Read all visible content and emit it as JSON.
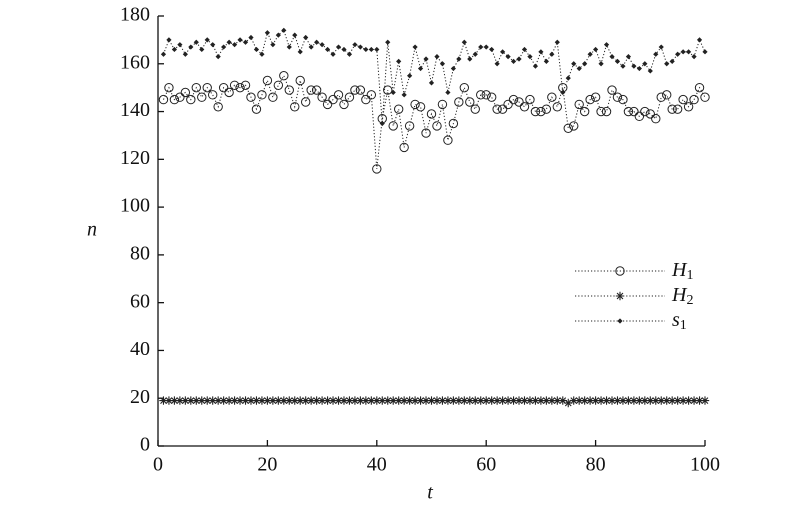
{
  "chart_data": {
    "type": "line",
    "x_label": "t",
    "y_label": "n",
    "x": [
      1,
      2,
      3,
      4,
      5,
      6,
      7,
      8,
      9,
      10,
      11,
      12,
      13,
      14,
      15,
      16,
      17,
      18,
      19,
      20,
      21,
      22,
      23,
      24,
      25,
      26,
      27,
      28,
      29,
      30,
      31,
      32,
      33,
      34,
      35,
      36,
      37,
      38,
      39,
      40,
      41,
      42,
      43,
      44,
      45,
      46,
      47,
      48,
      49,
      50,
      51,
      52,
      53,
      54,
      55,
      56,
      57,
      58,
      59,
      60,
      61,
      62,
      63,
      64,
      65,
      66,
      67,
      68,
      69,
      70,
      71,
      72,
      73,
      74,
      75,
      76,
      77,
      78,
      79,
      80,
      81,
      82,
      83,
      84,
      85,
      86,
      87,
      88,
      89,
      90,
      91,
      92,
      93,
      94,
      95,
      96,
      97,
      98,
      99,
      100
    ],
    "series": [
      {
        "name": "H1",
        "color": "#222",
        "marker": "circle",
        "values": [
          145,
          150,
          145,
          146,
          148,
          145,
          150,
          146,
          150,
          147,
          142,
          150,
          148,
          151,
          150,
          151,
          146,
          141,
          147,
          153,
          146,
          151,
          155,
          149,
          142,
          153,
          144,
          149,
          149,
          146,
          143,
          145,
          147,
          143,
          146,
          149,
          149,
          145,
          147,
          116,
          137,
          149,
          134,
          141,
          125,
          134,
          143,
          142,
          131,
          139,
          134,
          143,
          128,
          135,
          144,
          150,
          144,
          141,
          147,
          147,
          146,
          141,
          141,
          143,
          145,
          144,
          142,
          145,
          140,
          140,
          141,
          146,
          142,
          150,
          133,
          134,
          143,
          140,
          145,
          146,
          140,
          140,
          149,
          146,
          145,
          140,
          140,
          138,
          140,
          139,
          137,
          146,
          147,
          141,
          141,
          145,
          142,
          145,
          150,
          146
        ]
      },
      {
        "name": "H2",
        "color": "#222",
        "marker": "star",
        "values": [
          19,
          19,
          19,
          19,
          19,
          19,
          19,
          19,
          19,
          19,
          19,
          19,
          19,
          19,
          19,
          19,
          19,
          19,
          19,
          19,
          19,
          19,
          19,
          19,
          19,
          19,
          19,
          19,
          19,
          19,
          19,
          19,
          19,
          19,
          19,
          19,
          19,
          19,
          19,
          19,
          19,
          19,
          19,
          19,
          19,
          19,
          19,
          19,
          19,
          19,
          19,
          19,
          19,
          19,
          19,
          19,
          19,
          19,
          19,
          19,
          19,
          19,
          19,
          19,
          19,
          19,
          19,
          19,
          19,
          19,
          19,
          19,
          19,
          19,
          18,
          19,
          19,
          19,
          19,
          19,
          19,
          19,
          19,
          19,
          19,
          19,
          19,
          19,
          19,
          19,
          19,
          19,
          19,
          19,
          19,
          19,
          19,
          19,
          19,
          19
        ]
      },
      {
        "name": "s1",
        "color": "#222",
        "marker": "diamond",
        "values": [
          164,
          170,
          166,
          168,
          164,
          167,
          169,
          166,
          170,
          168,
          163,
          167,
          169,
          168,
          170,
          169,
          171,
          166,
          164,
          173,
          168,
          172,
          174,
          167,
          172,
          165,
          171,
          167,
          169,
          168,
          166,
          164,
          167,
          166,
          164,
          168,
          167,
          166,
          166,
          166,
          135,
          169,
          148,
          161,
          147,
          155,
          167,
          158,
          162,
          152,
          163,
          160,
          148,
          158,
          162,
          169,
          162,
          164,
          167,
          167,
          166,
          160,
          165,
          163,
          161,
          162,
          166,
          163,
          159,
          165,
          161,
          164,
          169,
          148,
          154,
          160,
          158,
          160,
          164,
          166,
          160,
          168,
          163,
          161,
          159,
          163,
          159,
          158,
          160,
          157,
          164,
          167,
          160,
          161,
          164,
          165,
          165,
          163,
          170,
          165
        ]
      }
    ],
    "xlim": [
      0,
      100
    ],
    "xticks": [
      0,
      20,
      40,
      60,
      80,
      100
    ],
    "ylim": [
      0,
      180
    ],
    "yticks": [
      0,
      20,
      40,
      60,
      80,
      100,
      120,
      140,
      160,
      180
    ],
    "legend": "right"
  }
}
